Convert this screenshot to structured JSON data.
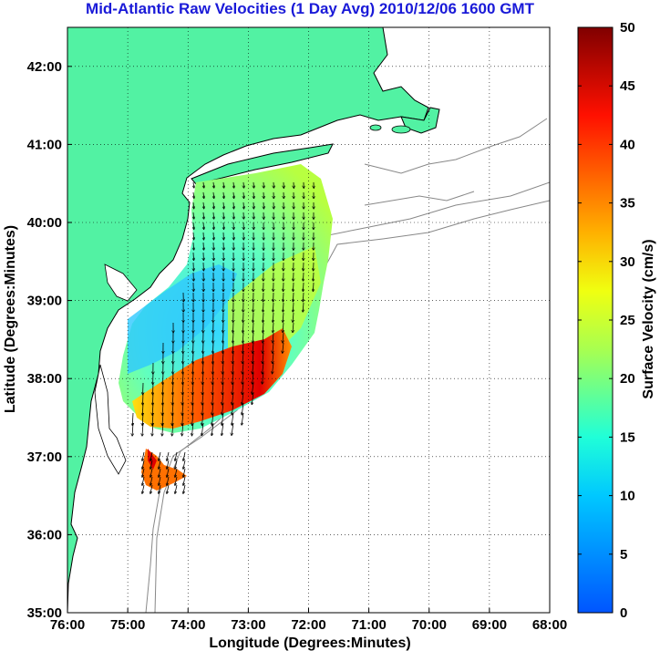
{
  "title": "Mid-Atlantic Raw Velocities (1 Day Avg) 2010/12/06 1600 GMT",
  "map": {
    "xlabel": "Longitude (Degrees:Minutes)",
    "ylabel": "Latitude (Degrees:Minutes)",
    "lon_range": [
      -76,
      -68
    ],
    "lat_range": [
      35,
      42.5
    ],
    "x_ticks": [
      "76:00",
      "75:00",
      "74:00",
      "73:00",
      "72:00",
      "71:00",
      "70:00",
      "69:00",
      "68:00"
    ],
    "y_ticks": [
      "35:00",
      "36:00",
      "37:00",
      "38:00",
      "39:00",
      "40:00",
      "41:00",
      "42:00"
    ],
    "grid": "dotted",
    "land_color": "#52f2a3"
  },
  "colorbar": {
    "label": "Surface Velocity (cm/s)",
    "ticks": [
      "0",
      "5",
      "10",
      "15",
      "20",
      "25",
      "30",
      "35",
      "40",
      "45",
      "50"
    ],
    "range": [
      0,
      50
    ],
    "colormap": "jet"
  }
}
